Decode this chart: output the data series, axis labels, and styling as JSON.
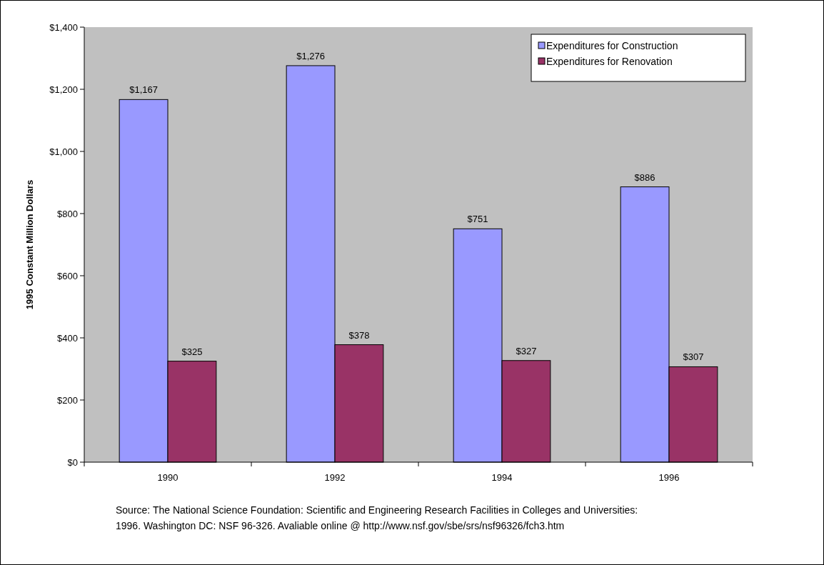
{
  "chart_data": {
    "type": "bar",
    "categories": [
      "1990",
      "1992",
      "1994",
      "1996"
    ],
    "series": [
      {
        "name": "Expenditures for Construction",
        "color": "#9999ff",
        "values": [
          1167,
          1276,
          751,
          886
        ],
        "value_labels": [
          "$1,167",
          "$1,276",
          "$751",
          "$886"
        ]
      },
      {
        "name": "Expenditures for Renovation",
        "color": "#993366",
        "values": [
          325,
          378,
          327,
          307
        ],
        "value_labels": [
          "$325",
          "$378",
          "$327",
          "$307"
        ]
      }
    ],
    "ylabel": "1995 Constant  Million Dollars",
    "ylim": [
      0,
      1400
    ],
    "yticks": [
      {
        "value": 0,
        "label": "$0"
      },
      {
        "value": 200,
        "label": "$200"
      },
      {
        "value": 400,
        "label": "$400"
      },
      {
        "value": 600,
        "label": "$600"
      },
      {
        "value": 800,
        "label": "$800"
      },
      {
        "value": 1000,
        "label": "$1,000"
      },
      {
        "value": 1200,
        "label": "$1,200"
      },
      {
        "value": 1400,
        "label": "$1,400"
      }
    ],
    "grid": false,
    "legend": "top right",
    "annotations": [
      "Source:  The National Science Foundation:  Scientific and Engineering Research Facilities in Colleges and Universities:",
      "1996.  Washington DC:  NSF 96-326.  Avaliable online @ http://www.nsf.gov/sbe/srs/nsf96326/fch3.htm"
    ]
  }
}
